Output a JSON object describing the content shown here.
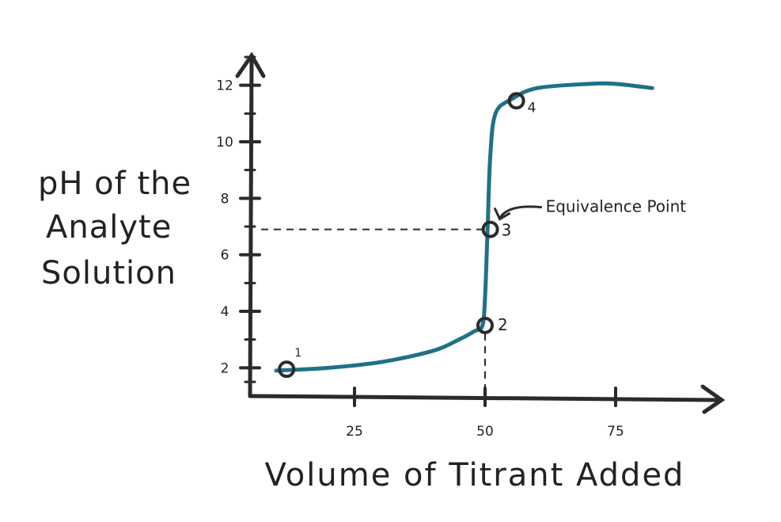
{
  "chart_data": {
    "type": "line",
    "title": "",
    "xlabel": "Volume of Titrant Added",
    "ylabel_lines": [
      "pH of the",
      "Analyte",
      "Solution"
    ],
    "x_ticks": [
      25,
      50,
      75
    ],
    "y_ticks": [
      2,
      4,
      6,
      8,
      10,
      12
    ],
    "xlim": [
      5,
      95
    ],
    "ylim": [
      1,
      13
    ],
    "grid": false,
    "legend": "none",
    "series": [
      {
        "color": "#1f7186",
        "x": [
          10,
          20,
          30,
          40,
          45,
          48,
          49.5,
          50,
          50.5,
          51,
          52,
          55,
          60,
          70,
          75,
          82
        ],
        "y": [
          1.9,
          2.0,
          2.2,
          2.6,
          3.0,
          3.3,
          3.5,
          4.5,
          7.0,
          9.5,
          11.0,
          11.5,
          11.9,
          12.05,
          12.05,
          11.9
        ]
      }
    ],
    "points": [
      {
        "label": "1",
        "x": 12,
        "y": 1.95
      },
      {
        "label": "2",
        "x": 50,
        "y": 3.5
      },
      {
        "label": "3",
        "x": 51,
        "y": 6.9
      },
      {
        "label": "4",
        "x": 56,
        "y": 11.45
      }
    ],
    "annotations": [
      {
        "text": "Equivalence Point",
        "target_point": "3"
      }
    ],
    "reference_lines": [
      {
        "type": "horizontal",
        "y": 6.9,
        "x_to": 51
      },
      {
        "type": "vertical",
        "x": 50,
        "y_from": 3.5
      }
    ]
  }
}
